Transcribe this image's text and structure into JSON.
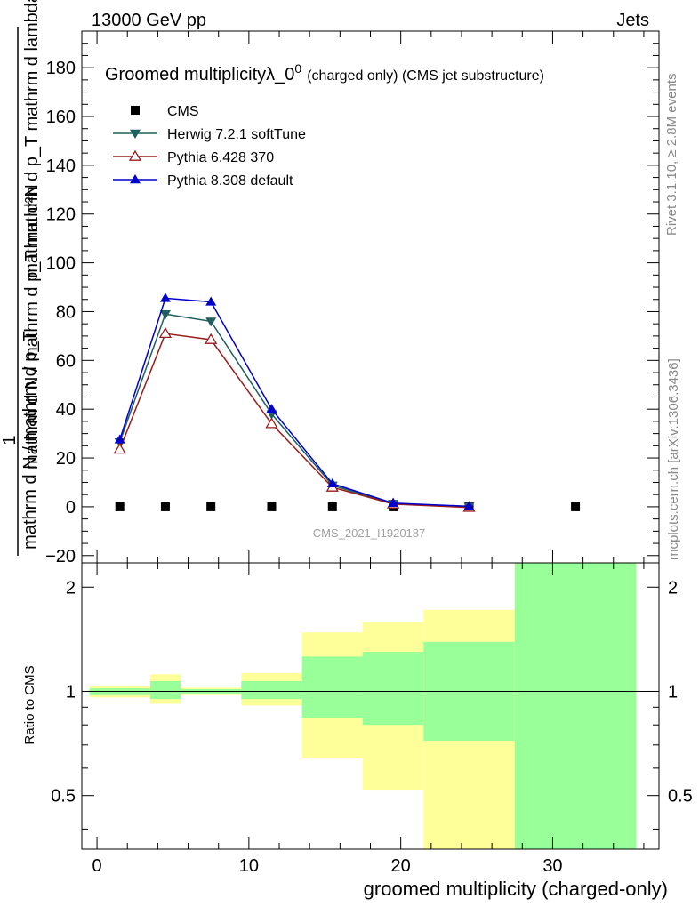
{
  "header": {
    "energy": "13000 GeV pp",
    "process": "Jets"
  },
  "side_labels": {
    "rivet": "Rivet 3.1.10, ≥ 2.8M events",
    "source": "mcplots.cern.ch [arXiv:1306.3436]"
  },
  "watermark": "CMS_2021_I1920187",
  "chart_data": {
    "type": "line",
    "title": "Groomed multiplicityλ_0",
    "title_sup": "0",
    "title_suffix": "(charged only) (CMS jet substructure)",
    "xlabel": "groomed multiplicity (charged-only)",
    "ylabel_top": "mathrm d²N",
    "ylabel_one": "1",
    "ylabel_main": "mathrm d N / mathrm d p_T mathrm d p_T mathrm d lambda",
    "ylabel_bottom": "mathrm d N / mathrm d p_T",
    "ratio_ylabel": "Ratio to CMS",
    "xlim": [
      -1,
      37
    ],
    "ylim": [
      -23,
      195
    ],
    "ratio_ylim": [
      0.35,
      2.35
    ],
    "x_ticks": [
      "0",
      "10",
      "20",
      "30"
    ],
    "y_ticks": [
      "−20",
      "0",
      "20",
      "40",
      "60",
      "80",
      "100",
      "120",
      "140",
      "160",
      "180"
    ],
    "ratio_ticks": [
      "0.5",
      "1",
      "2"
    ],
    "series": [
      {
        "name": "CMS",
        "marker": "square",
        "color": "#000000",
        "x": [
          1.5,
          4.5,
          7.5,
          11.5,
          15.5,
          19.5,
          24.5,
          31.5
        ],
        "values": [
          0,
          0,
          0,
          0,
          0,
          0,
          0,
          0
        ]
      },
      {
        "name": "Herwig 7.2.1 softTune",
        "marker": "triangle-down",
        "color": "#1f5f5f",
        "x": [
          1.5,
          4.5,
          7.5,
          11.5,
          15.5,
          19.5,
          24.5
        ],
        "values": [
          26.5,
          79,
          76,
          38,
          8.8,
          1.3,
          0.1
        ]
      },
      {
        "name": "Pythia 6.428 370",
        "marker": "triangle-open",
        "color": "#9b1b1b",
        "x": [
          1.5,
          4.5,
          7.5,
          11.5,
          15.5,
          19.5,
          24.5
        ],
        "values": [
          23.5,
          71,
          68.5,
          34,
          8,
          1.1,
          -0.3
        ]
      },
      {
        "name": "Pythia 8.308 default",
        "marker": "triangle-up",
        "color": "#0000cc",
        "x": [
          1.5,
          4.5,
          7.5,
          11.5,
          15.5,
          19.5,
          24.5
        ],
        "values": [
          27.5,
          85.5,
          84,
          40,
          9.5,
          1.5,
          0.2
        ]
      }
    ],
    "ratio_bands": [
      {
        "x0": -0.5,
        "x1": 3.5,
        "y_lo": 0.96,
        "y_hi": 1.035,
        "g_lo": 0.975,
        "g_hi": 1.02
      },
      {
        "x0": 3.5,
        "x1": 5.5,
        "y_lo": 0.92,
        "y_hi": 1.12,
        "g_lo": 0.95,
        "g_hi": 1.07
      },
      {
        "x0": 5.5,
        "x1": 9.5,
        "y_lo": 0.975,
        "y_hi": 1.025,
        "g_lo": 0.985,
        "g_hi": 1.015
      },
      {
        "x0": 9.5,
        "x1": 13.5,
        "y_lo": 0.91,
        "y_hi": 1.13,
        "g_lo": 0.95,
        "g_hi": 1.07
      },
      {
        "x0": 13.5,
        "x1": 17.5,
        "y_lo": 0.64,
        "y_hi": 1.48,
        "g_lo": 0.84,
        "g_hi": 1.26
      },
      {
        "x0": 17.5,
        "x1": 21.5,
        "y_lo": 0.52,
        "y_hi": 1.58,
        "g_lo": 0.8,
        "g_hi": 1.3
      },
      {
        "x0": 21.5,
        "x1": 27.5,
        "y_lo": 0.35,
        "y_hi": 1.72,
        "g_lo": 0.72,
        "g_hi": 1.39
      },
      {
        "x0": 27.5,
        "x1": 35.5,
        "y_lo": 0.35,
        "y_hi": 2.35,
        "g_lo": 0.35,
        "g_hi": 2.35
      }
    ]
  }
}
